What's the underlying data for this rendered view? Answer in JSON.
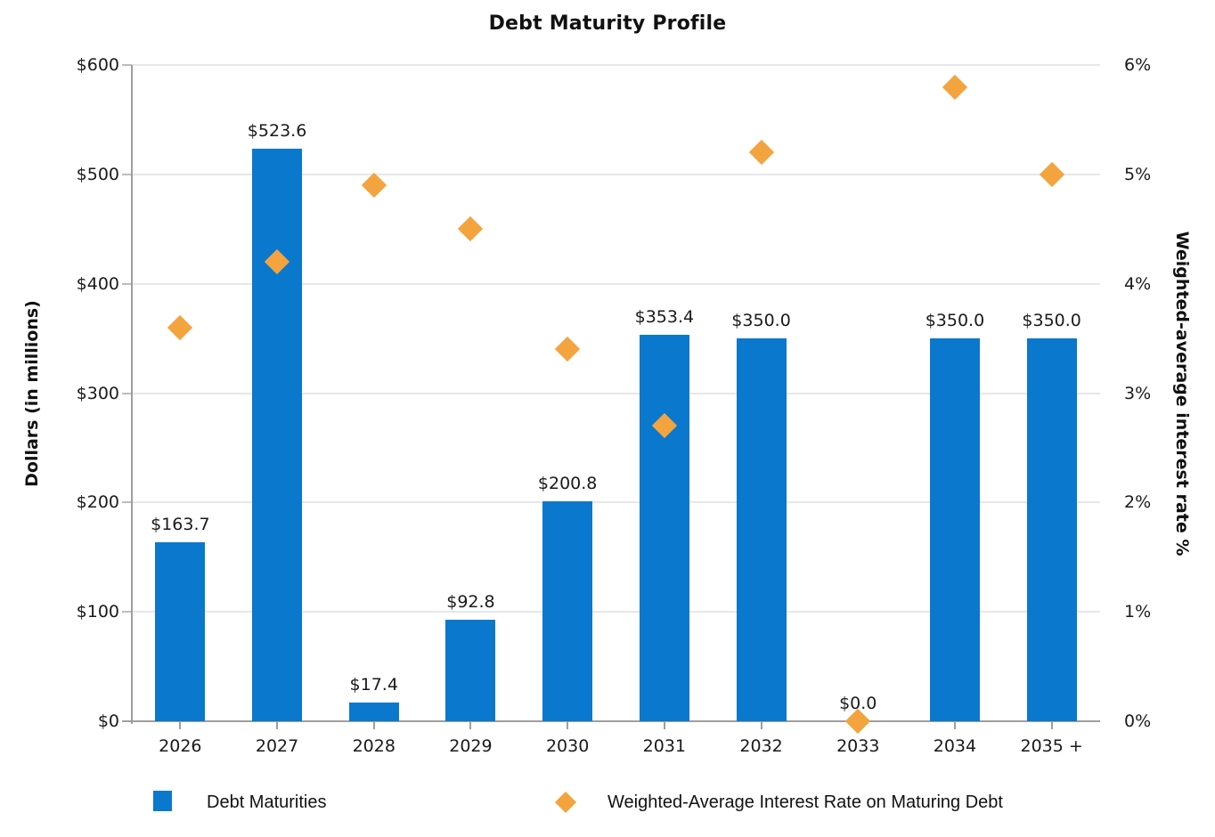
{
  "title": "Debt Maturity Profile",
  "colors": {
    "bar": "#0a78cc",
    "marker": "#f3a43e",
    "gridline": "#e7e7e7",
    "axis_line": "#9e9e9e"
  },
  "chart_data": {
    "type": "bar",
    "subtype": "combo-bar-with-scatter-diamonds",
    "title": "Debt Maturity Profile",
    "categories": [
      "2026",
      "2027",
      "2028",
      "2029",
      "2030",
      "2031",
      "2032",
      "2033",
      "2034",
      "2035 +"
    ],
    "series": [
      {
        "name": "Debt Maturities",
        "type": "bar",
        "axis": "left",
        "color": "#0a78cc",
        "values": [
          163.7,
          523.6,
          17.4,
          92.8,
          200.8,
          353.4,
          350.0,
          0.0,
          350.0,
          350.0
        ],
        "data_labels": [
          "$163.7",
          "$523.6",
          "$17.4",
          "$92.8",
          "$200.8",
          "$353.4",
          "$350.0",
          "$0.0",
          "$350.0",
          "$350.0"
        ]
      },
      {
        "name": "Weighted-Average Interest Rate on Maturing Debt",
        "type": "scatter",
        "marker": "diamond",
        "axis": "right",
        "color": "#f3a43e",
        "values": [
          3.6,
          4.2,
          4.9,
          4.5,
          3.4,
          2.7,
          5.2,
          0.0,
          5.8,
          5.0
        ]
      }
    ],
    "left_axis": {
      "label": "Dollars (in millions)",
      "ticks": [
        "$600",
        "$500",
        "$400",
        "$300",
        "$200",
        "$100",
        "$0"
      ],
      "min": 0,
      "max": 600
    },
    "right_axis": {
      "label": "Weighted-average interest rate %",
      "ticks": [
        "6%",
        "5%",
        "4%",
        "3%",
        "2%",
        "1%",
        "0%"
      ],
      "min": 0,
      "max": 6
    },
    "grid": true,
    "legend_position": "bottom"
  },
  "legend": {
    "bar_label": "Debt Maturities",
    "rate_label": "Weighted-Average Interest Rate on Maturing Debt"
  }
}
